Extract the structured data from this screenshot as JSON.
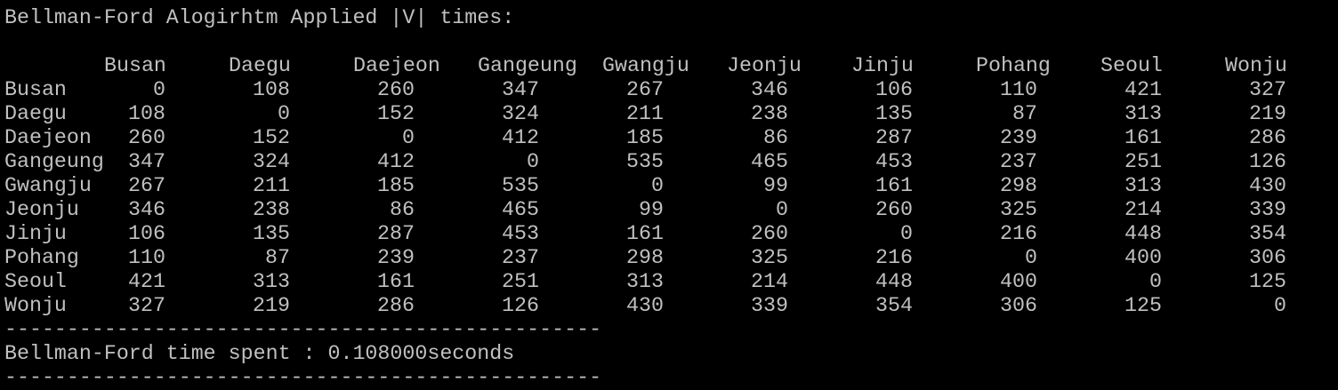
{
  "console": {
    "title_line": "Bellman-Ford Alogirhtm Applied |V| times:",
    "columns": [
      "Busan",
      "Daegu",
      "Daejeon",
      "Gangeung",
      "Gwangju",
      "Jeonju",
      "Jinju",
      "Pohang",
      "Seoul",
      "Wonju"
    ],
    "rows": [
      {
        "label": "Busan",
        "values": [
          "0",
          "108",
          "260",
          "347",
          "267",
          "346",
          "106",
          "110",
          "421",
          "327"
        ]
      },
      {
        "label": "Daegu",
        "values": [
          "108",
          "0",
          "152",
          "324",
          "211",
          "238",
          "135",
          "87",
          "313",
          "219"
        ]
      },
      {
        "label": "Daejeon",
        "values": [
          "260",
          "152",
          "0",
          "412",
          "185",
          "86",
          "287",
          "239",
          "161",
          "286"
        ]
      },
      {
        "label": "Gangeung",
        "values": [
          "347",
          "324",
          "412",
          "0",
          "535",
          "465",
          "453",
          "237",
          "251",
          "126"
        ]
      },
      {
        "label": "Gwangju",
        "values": [
          "267",
          "211",
          "185",
          "535",
          "0",
          "99",
          "161",
          "298",
          "313",
          "430"
        ]
      },
      {
        "label": "Jeonju",
        "values": [
          "346",
          "238",
          "86",
          "465",
          "99",
          "0",
          "260",
          "325",
          "214",
          "339"
        ]
      },
      {
        "label": "Jinju",
        "values": [
          "106",
          "135",
          "287",
          "453",
          "161",
          "260",
          "0",
          "216",
          "448",
          "354"
        ]
      },
      {
        "label": "Pohang",
        "values": [
          "110",
          "87",
          "239",
          "237",
          "298",
          "325",
          "216",
          "0",
          "400",
          "306"
        ]
      },
      {
        "label": "Seoul",
        "values": [
          "421",
          "313",
          "161",
          "251",
          "313",
          "214",
          "448",
          "400",
          "0",
          "125"
        ]
      },
      {
        "label": "Wonju",
        "values": [
          "327",
          "219",
          "286",
          "126",
          "430",
          "339",
          "354",
          "306",
          "125",
          "0"
        ]
      }
    ],
    "separator": "------------------------------------------------",
    "time_line": "Bellman-Ford time spent : 0.108000seconds",
    "colors": {
      "background": "#000000",
      "text": "#c0c0c0"
    }
  }
}
